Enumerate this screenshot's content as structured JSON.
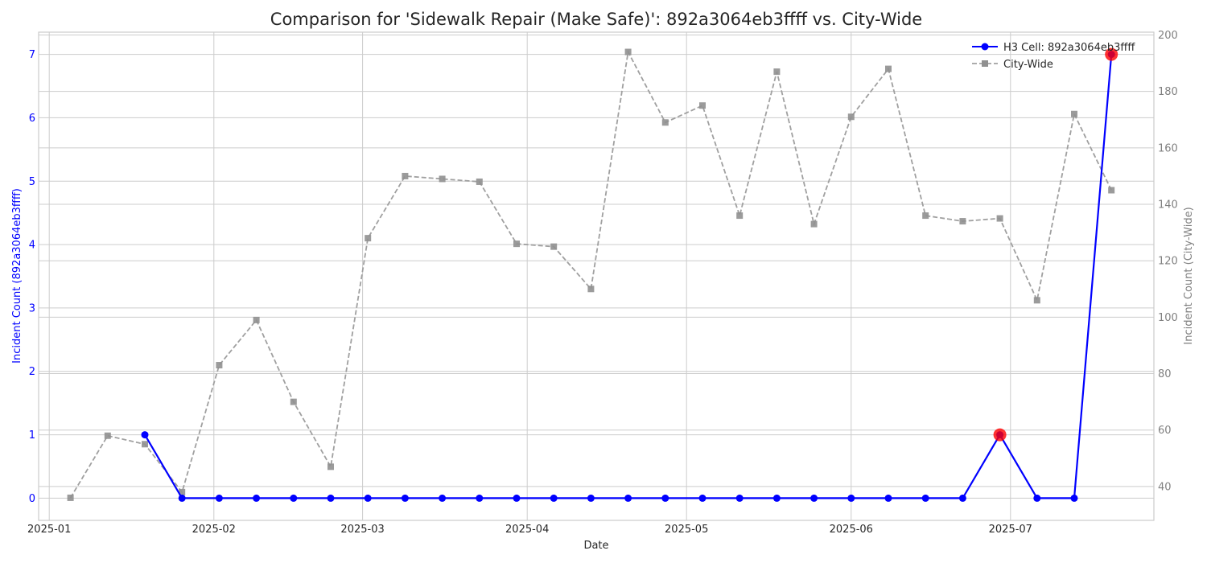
{
  "chart_data": {
    "type": "line",
    "title": "Comparison for 'Sidewalk Repair (Make Safe)': 892a3064eb3ffff vs. City-Wide",
    "xlabel": "Date",
    "ylabel_left": "Incident Count (892a3064eb3ffff)",
    "ylabel_right": "Incident Count (City-Wide)",
    "x_ticks": [
      "2025-01",
      "2025-02",
      "2025-03",
      "2025-04",
      "2025-05",
      "2025-06",
      "2025-07"
    ],
    "x_range": [
      "2024-12-30",
      "2025-07-28"
    ],
    "ylim_left": [
      -0.35,
      7.35
    ],
    "yticks_left": [
      0,
      1,
      2,
      3,
      4,
      5,
      6,
      7
    ],
    "ylim_right": [
      28,
      201
    ],
    "yticks_right": [
      40,
      60,
      80,
      100,
      120,
      140,
      160,
      180,
      200
    ],
    "grid": true,
    "legend_position": "top-right",
    "colors": {
      "cell": "#0000ff",
      "city": "#a0a0a0",
      "anomaly": "#ff0000"
    },
    "series": [
      {
        "name": "H3 Cell: 892a3064eb3ffff",
        "axis": "left",
        "style": "solid-circle",
        "x": [
          "2025-01-19",
          "2025-01-26",
          "2025-02-02",
          "2025-02-09",
          "2025-02-16",
          "2025-02-23",
          "2025-03-02",
          "2025-03-09",
          "2025-03-16",
          "2025-03-23",
          "2025-03-30",
          "2025-04-06",
          "2025-04-13",
          "2025-04-20",
          "2025-04-27",
          "2025-05-04",
          "2025-05-11",
          "2025-05-18",
          "2025-05-25",
          "2025-06-01",
          "2025-06-08",
          "2025-06-15",
          "2025-06-22",
          "2025-06-29",
          "2025-07-06",
          "2025-07-13",
          "2025-07-20"
        ],
        "values": [
          1,
          0,
          0,
          0,
          0,
          0,
          0,
          0,
          0,
          0,
          0,
          0,
          0,
          0,
          0,
          0,
          0,
          0,
          0,
          0,
          0,
          0,
          0,
          1,
          0,
          0,
          7
        ]
      },
      {
        "name": "City-Wide",
        "axis": "right",
        "style": "dashed-square",
        "x": [
          "2025-01-05",
          "2025-01-12",
          "2025-01-19",
          "2025-01-26",
          "2025-02-02",
          "2025-02-09",
          "2025-02-16",
          "2025-02-23",
          "2025-03-02",
          "2025-03-09",
          "2025-03-16",
          "2025-03-23",
          "2025-03-30",
          "2025-04-06",
          "2025-04-13",
          "2025-04-20",
          "2025-04-27",
          "2025-05-04",
          "2025-05-11",
          "2025-05-18",
          "2025-05-25",
          "2025-06-01",
          "2025-06-08",
          "2025-06-15",
          "2025-06-22",
          "2025-06-29",
          "2025-07-06",
          "2025-07-13",
          "2025-07-20"
        ],
        "values": [
          36,
          58,
          55,
          38,
          83,
          99,
          70,
          47,
          128,
          150,
          149,
          148,
          126,
          125,
          110,
          194,
          169,
          175,
          136,
          187,
          133,
          171,
          188,
          136,
          134,
          135,
          106,
          172,
          145
        ]
      }
    ],
    "anomalies": [
      {
        "x": "2025-06-29",
        "value": 1
      },
      {
        "x": "2025-07-20",
        "value": 7
      }
    ]
  }
}
